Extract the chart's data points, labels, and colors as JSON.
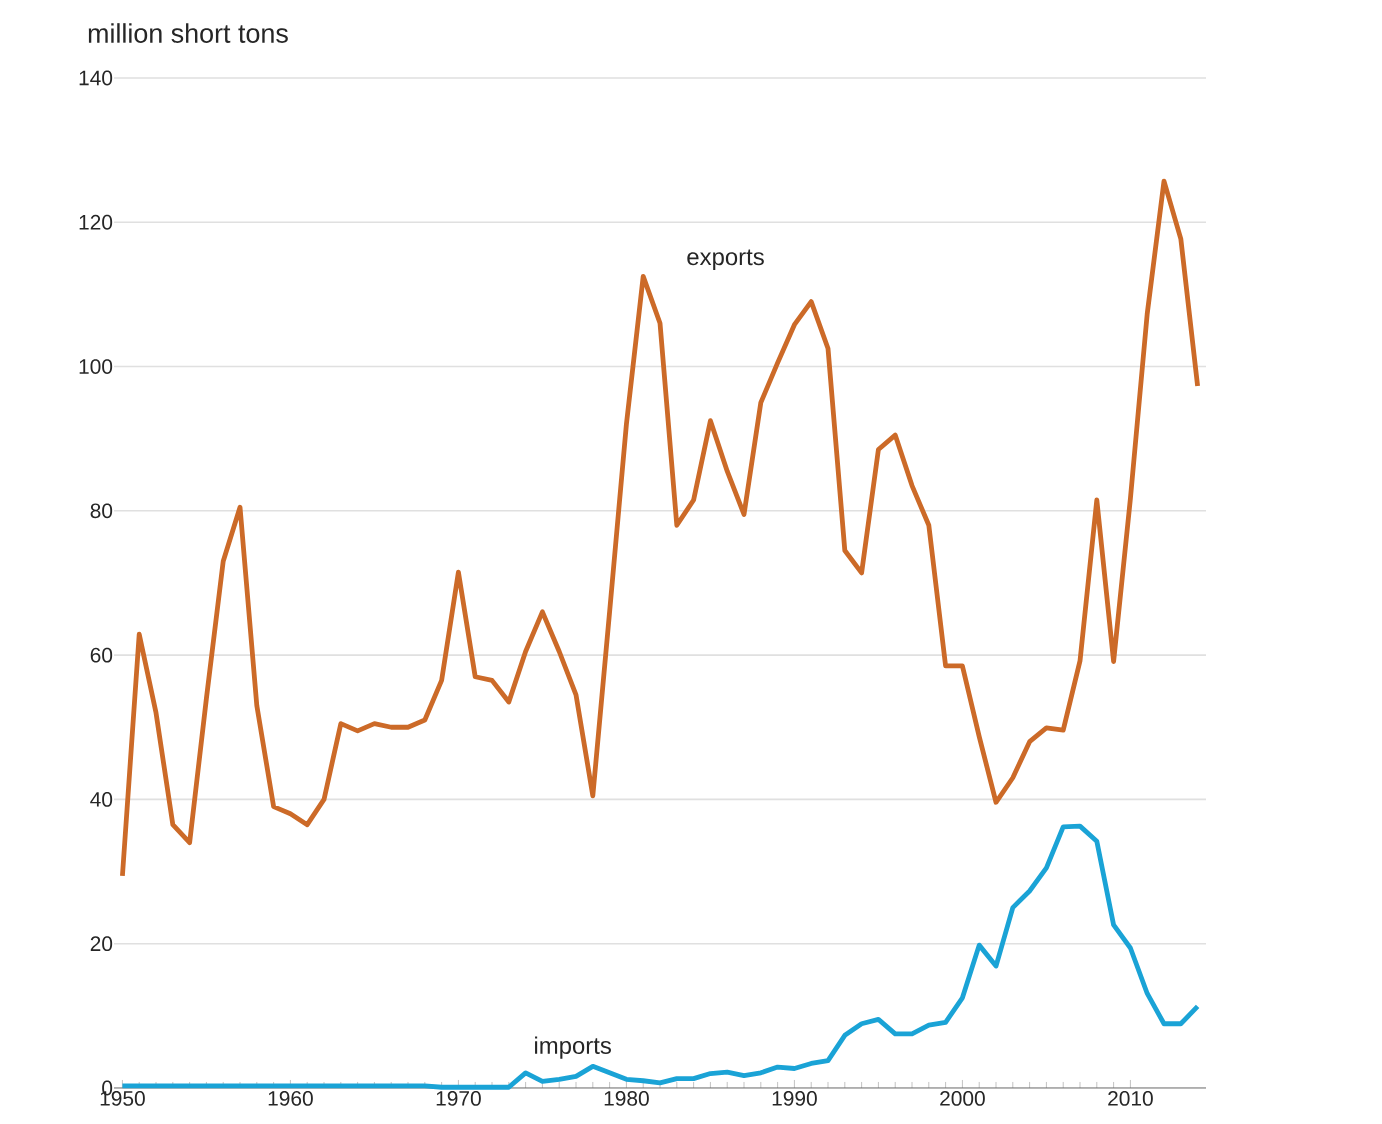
{
  "chart_data": {
    "type": "line",
    "ylabel": "million short tons",
    "x": [
      1950,
      1951,
      1952,
      1953,
      1954,
      1955,
      1956,
      1957,
      1958,
      1959,
      1960,
      1961,
      1962,
      1963,
      1964,
      1965,
      1966,
      1967,
      1968,
      1969,
      1970,
      1971,
      1972,
      1973,
      1974,
      1975,
      1976,
      1977,
      1978,
      1979,
      1980,
      1981,
      1982,
      1983,
      1984,
      1985,
      1986,
      1987,
      1988,
      1989,
      1990,
      1991,
      1992,
      1993,
      1994,
      1995,
      1996,
      1997,
      1998,
      1999,
      2000,
      2001,
      2002,
      2003,
      2004,
      2005,
      2006,
      2007,
      2008,
      2009,
      2010,
      2011,
      2012,
      2013,
      2014
    ],
    "series": [
      {
        "name": "exports",
        "color": "#cc6a28",
        "values": [
          29.4,
          62.9,
          52,
          36.5,
          34,
          54,
          73,
          80.5,
          53,
          39,
          38,
          36.5,
          40,
          50.5,
          49.5,
          50.5,
          50,
          50,
          51,
          56.5,
          71.5,
          57,
          56.5,
          53.5,
          60.5,
          66,
          60.5,
          54.5,
          40.5,
          66,
          92,
          112.5,
          106,
          78,
          81.5,
          92.5,
          85.5,
          79.5,
          95,
          100.5,
          105.8,
          109,
          102.5,
          74.5,
          71.4,
          88.5,
          90.5,
          83.5,
          78,
          58.5,
          58.5,
          48.7,
          39.6,
          43,
          48,
          49.9,
          49.6,
          59.2,
          81.5,
          59.1,
          81.7,
          107.3,
          125.7,
          117.7,
          97.3
        ]
      },
      {
        "name": "imports",
        "color": "#1aa3d6",
        "values": [
          0.3,
          0.3,
          0.3,
          0.3,
          0.3,
          0.3,
          0.3,
          0.3,
          0.3,
          0.3,
          0.3,
          0.3,
          0.3,
          0.3,
          0.3,
          0.3,
          0.3,
          0.3,
          0.3,
          0.1,
          0.1,
          0.1,
          0.1,
          0.1,
          2.1,
          0.9,
          1.2,
          1.6,
          3,
          2.1,
          1.2,
          1,
          0.7,
          1.3,
          1.3,
          2,
          2.2,
          1.7,
          2.1,
          2.9,
          2.7,
          3.4,
          3.8,
          7.3,
          8.9,
          9.5,
          7.5,
          7.5,
          8.7,
          9.1,
          12.5,
          19.8,
          16.9,
          25,
          27.3,
          30.5,
          36.2,
          36.3,
          34.2,
          22.6,
          19.4,
          13.1,
          8.9,
          8.9,
          11.3
        ]
      }
    ],
    "xlim": [
      1949.5,
      2014.5
    ],
    "ylim": [
      0,
      140
    ],
    "xticks": [
      1950,
      1960,
      1970,
      1980,
      1990,
      2000,
      2010
    ],
    "yticks": [
      0,
      20,
      40,
      60,
      80,
      100,
      120,
      140
    ],
    "grid": "y",
    "marker": "none",
    "line_style": "solid"
  }
}
